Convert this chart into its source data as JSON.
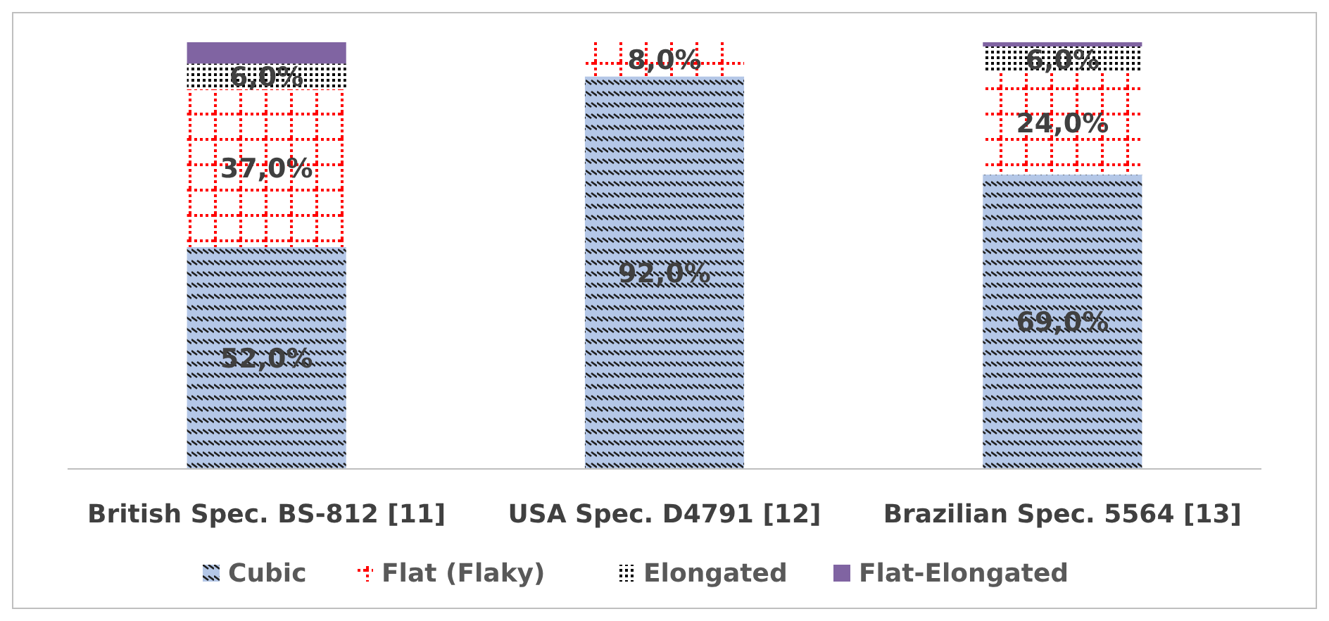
{
  "chart_data": {
    "type": "bar",
    "stacked": true,
    "legend": "bottom",
    "categories": [
      "British Spec. BS-812 [11]",
      "USA Spec. D4791 [12]",
      "Brazilian Spec. 5564 [13]"
    ],
    "series": [
      {
        "name": "Cubic",
        "color": "#b4c7e7",
        "values": [
          52,
          92,
          69
        ],
        "value_labels": [
          "52,0%",
          "92,0%",
          "69,0%"
        ]
      },
      {
        "name": "Flat (Flaky)",
        "color": "#ff0000",
        "values": [
          37,
          8,
          24
        ],
        "value_labels": [
          "37,0%",
          "8,0%",
          "24,0%"
        ]
      },
      {
        "name": "Elongated",
        "color": "#000000",
        "values": [
          6,
          0,
          6
        ],
        "value_labels": [
          "6,0%",
          null,
          "6,0%"
        ]
      },
      {
        "name": "Flat-Elongated",
        "color": "#8064a2",
        "values": [
          5,
          0,
          1
        ],
        "value_labels": [
          null,
          null,
          null
        ]
      }
    ]
  }
}
